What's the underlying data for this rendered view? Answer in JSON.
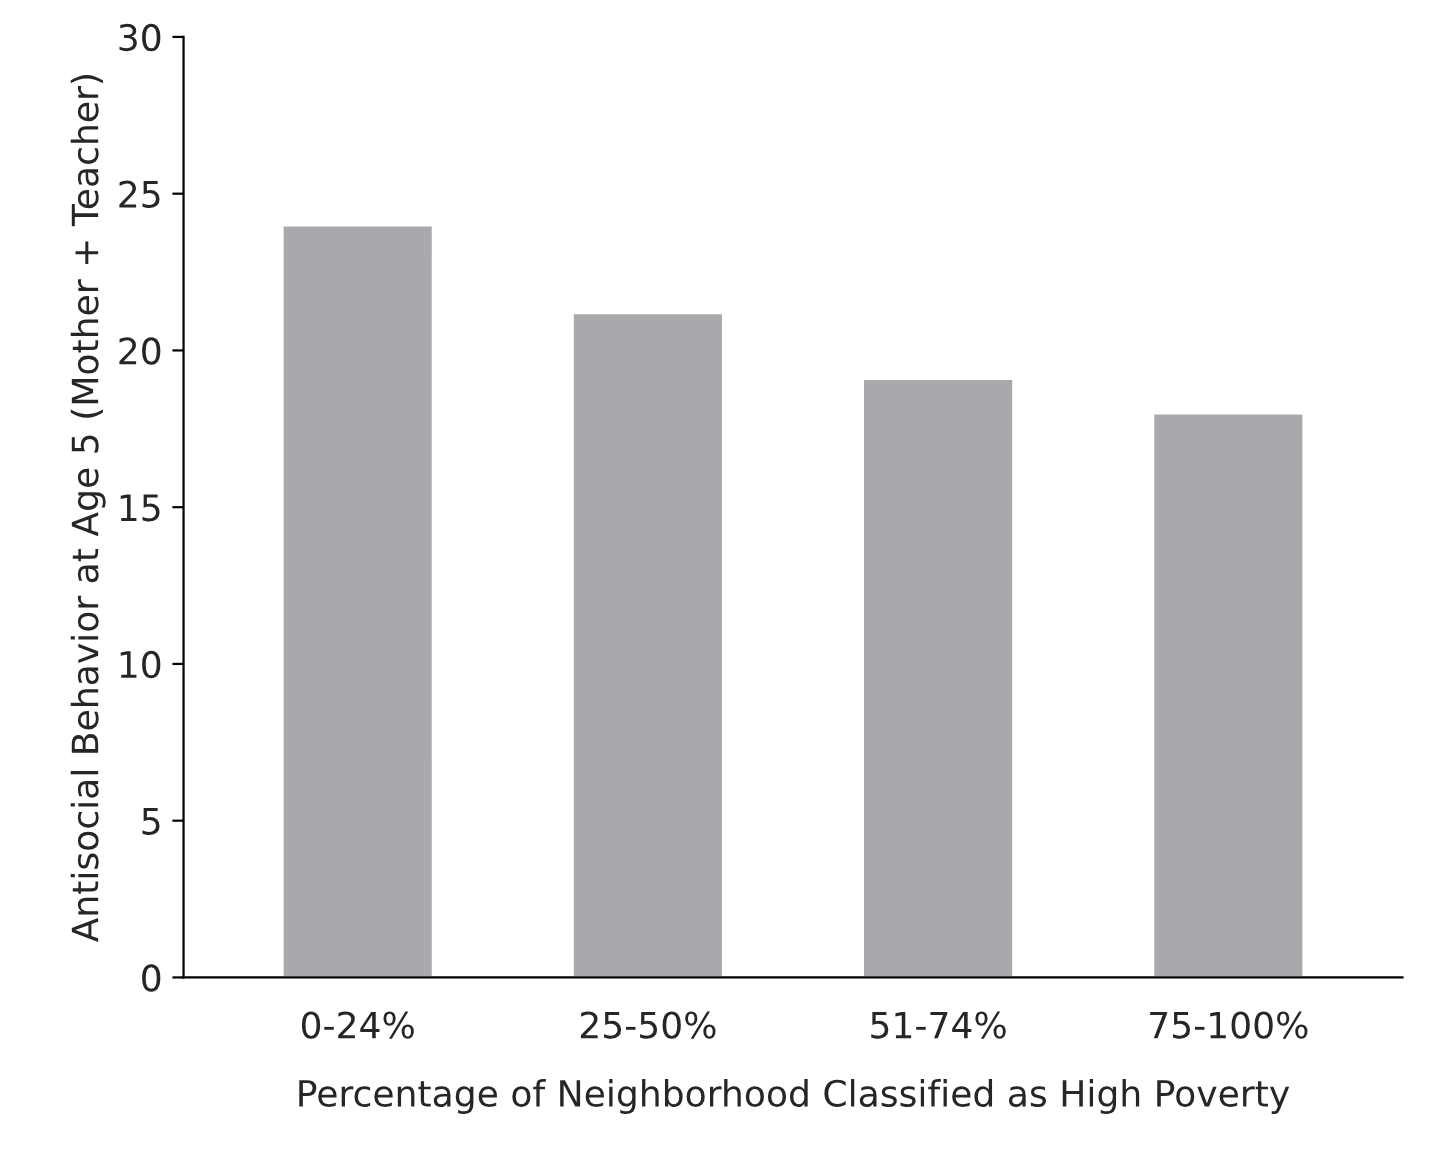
{
  "chart_data": {
    "type": "bar",
    "xlabel": "Percentage of Neighborhood Classified as High Poverty",
    "ylabel": "Antisocial Behavior at Age 5 (Mother + Teacher)",
    "categories": [
      "0-24%",
      "25-50%",
      "51-74%",
      "75-100%"
    ],
    "values": [
      24.0,
      21.2,
      19.1,
      18.0
    ],
    "color": "#a7a9ac",
    "ylim": [
      0,
      30
    ],
    "yticks": [
      0,
      5,
      10,
      15,
      20,
      25,
      30
    ],
    "grid": false
  }
}
